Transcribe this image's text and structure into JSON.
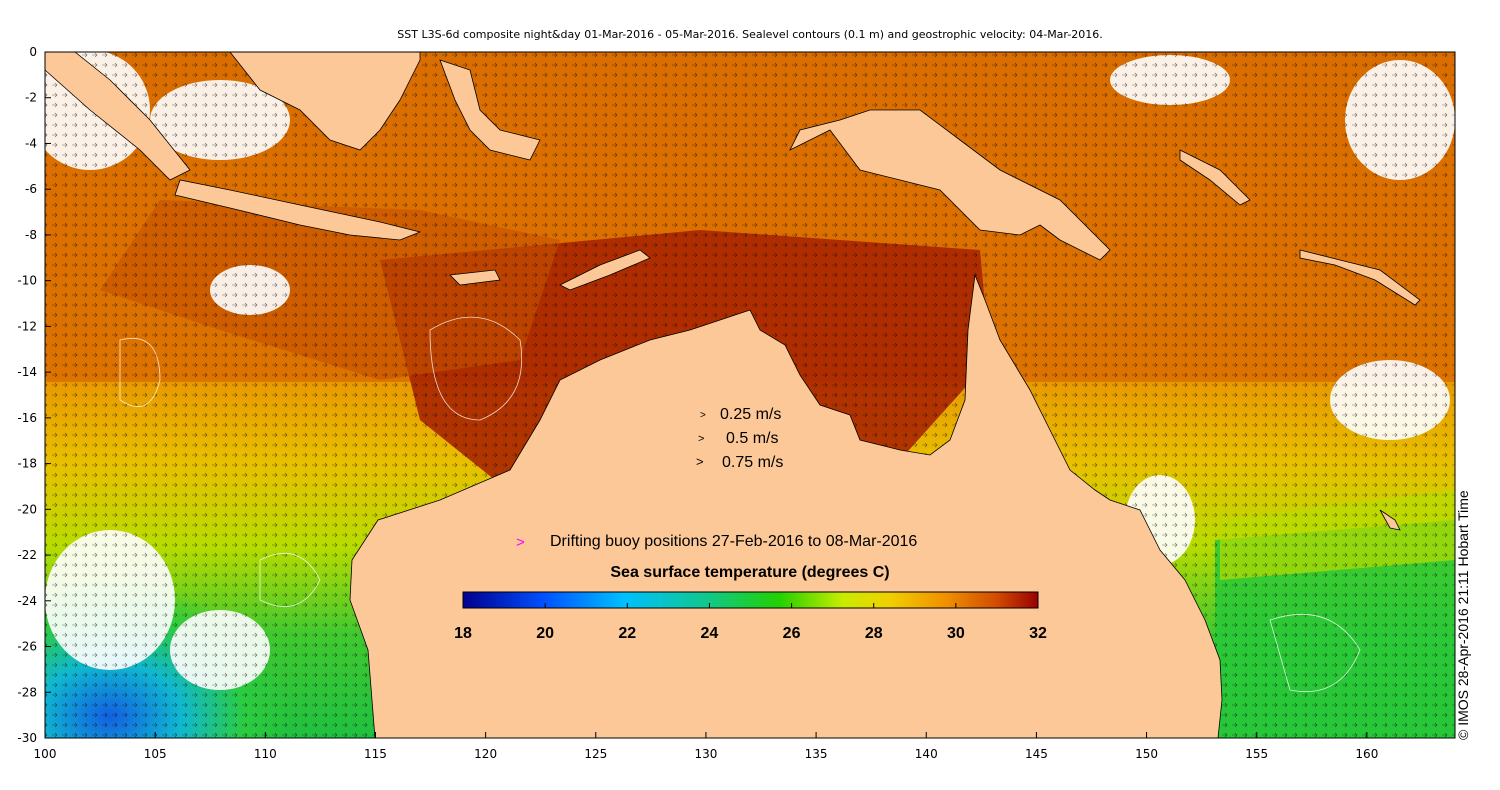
{
  "title": "SST L3S-6d composite night&day 01-Mar-2016 - 05-Mar-2016. Sealevel contours (0.1 m) and geostrophic velocity: 04-Mar-2016.",
  "credit": "© IMOS 28-Apr-2016 21:11 Hobart Time",
  "axes": {
    "x_ticks": [
      "100",
      "105",
      "110",
      "115",
      "120",
      "125",
      "130",
      "135",
      "140",
      "145",
      "150",
      "155",
      "160"
    ],
    "y_ticks": [
      "0",
      "-2",
      "-4",
      "-6",
      "-8",
      "-10",
      "-12",
      "-14",
      "-16",
      "-18",
      "-20",
      "-22",
      "-24",
      "-26",
      "-28",
      "-30"
    ],
    "lon_range": [
      100,
      164
    ],
    "lat_range": [
      -30,
      0
    ]
  },
  "velocity_legend": [
    {
      "label": "0.25 m/s",
      "arrow": ">"
    },
    {
      "label": "0.5 m/s",
      "arrow": ">"
    },
    {
      "label": "0.75 m/s",
      "arrow": ">"
    }
  ],
  "buoy_legend": {
    "marker": ">",
    "label": "Drifting buoy positions 27-Feb-2016 to 08-Mar-2016",
    "color": "#ff00ff"
  },
  "colorbar": {
    "title": "Sea surface temperature (degrees C)",
    "ticks": [
      "18",
      "20",
      "22",
      "24",
      "26",
      "28",
      "30",
      "32"
    ],
    "range": [
      18,
      32
    ]
  },
  "colors": {
    "land": "#fcc898",
    "ocean_warm": "#b32c00",
    "ocean_orange": "#e07a00",
    "ocean_yellow": "#e8c800",
    "ocean_green": "#33c233",
    "ocean_cyan": "#00bcd4",
    "ocean_blue": "#1f5fd8"
  }
}
